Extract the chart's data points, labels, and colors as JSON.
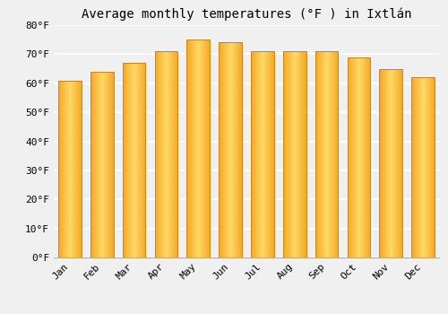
{
  "title": "Average monthly temperatures (°F ) in Ixtlán",
  "months": [
    "Jan",
    "Feb",
    "Mar",
    "Apr",
    "May",
    "Jun",
    "Jul",
    "Aug",
    "Sep",
    "Oct",
    "Nov",
    "Dec"
  ],
  "values": [
    61,
    64,
    67,
    71,
    75,
    74,
    71,
    71,
    71,
    69,
    65,
    62
  ],
  "bar_color_left": "#F5A623",
  "bar_color_center": "#FFD966",
  "bar_color_right": "#F5A623",
  "bar_edge_color": "#C8861A",
  "ylim": [
    0,
    80
  ],
  "yticks": [
    0,
    10,
    20,
    30,
    40,
    50,
    60,
    70,
    80
  ],
  "ytick_labels": [
    "0°F",
    "10°F",
    "20°F",
    "30°F",
    "40°F",
    "50°F",
    "60°F",
    "70°F",
    "80°F"
  ],
  "bg_color": "#f0f0f0",
  "grid_color": "#ffffff",
  "title_fontsize": 10,
  "tick_fontsize": 8
}
